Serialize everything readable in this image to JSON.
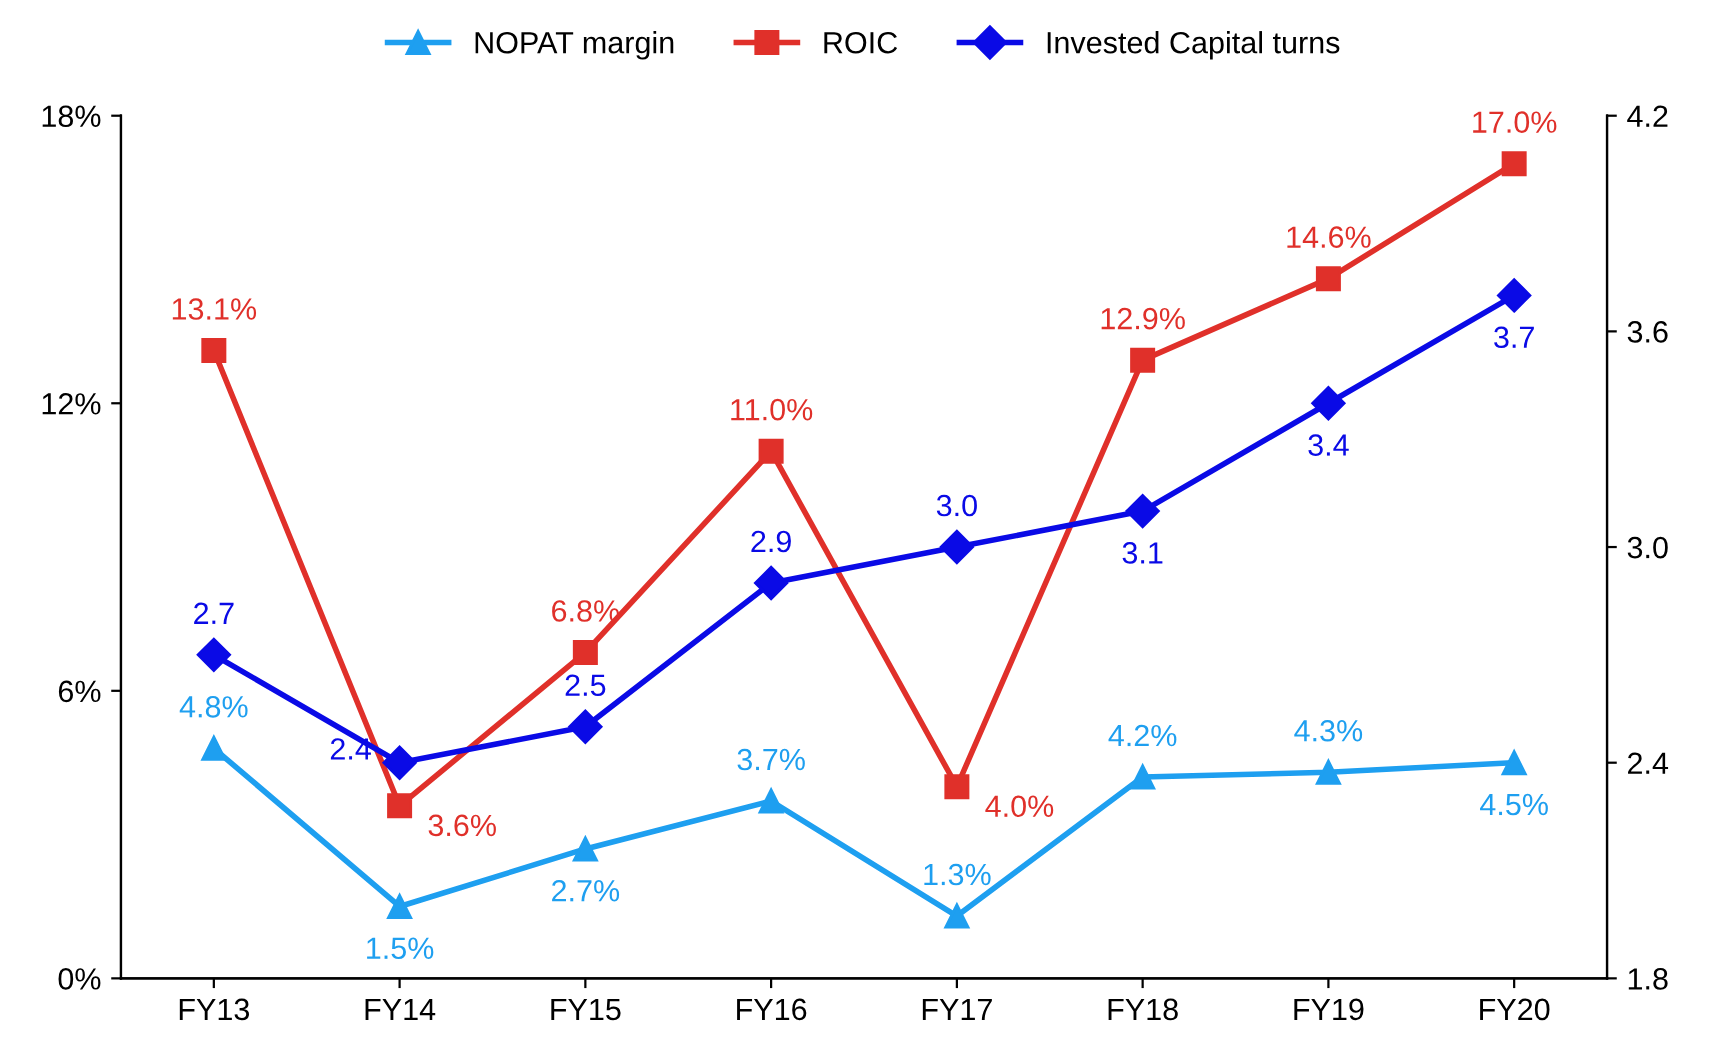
{
  "chart_data": {
    "type": "line",
    "categories": [
      "FY13",
      "FY14",
      "FY15",
      "FY16",
      "FY17",
      "FY18",
      "FY19",
      "FY20"
    ],
    "series": [
      {
        "name": "NOPAT margin",
        "color": "#1e9ff0",
        "marker": "triangle",
        "values": [
          4.8,
          1.5,
          2.7,
          3.7,
          1.3,
          4.2,
          4.3,
          4.5
        ],
        "value_labels": [
          "4.8%",
          "1.5%",
          "2.7%",
          "3.7%",
          "1.3%",
          "4.2%",
          "4.3%",
          "4.5%"
        ]
      },
      {
        "name": "ROIC",
        "color": "#e0302a",
        "marker": "square",
        "values": [
          13.1,
          3.6,
          6.8,
          11.0,
          4.0,
          12.9,
          14.6,
          17.0
        ],
        "value_labels": [
          "13.1%",
          "3.6%",
          "6.8%",
          "11.0%",
          "4.0%",
          "12.9%",
          "14.6%",
          "17.0%"
        ]
      },
      {
        "name": "Invested Capital turns",
        "color": "#0a0ae6",
        "marker": "diamond",
        "axis": "y2",
        "values": [
          2.7,
          2.4,
          2.5,
          2.9,
          3.0,
          3.1,
          3.4,
          3.7
        ],
        "value_labels": [
          "2.7",
          "2.4",
          "2.5",
          "2.9",
          "3.0",
          "3.1",
          "3.4",
          "3.7"
        ]
      }
    ],
    "ylim": [
      0,
      18
    ],
    "yticks": [
      {
        "value": 0,
        "label": "0%"
      },
      {
        "value": 6,
        "label": "6%"
      },
      {
        "value": 12,
        "label": "12%"
      },
      {
        "value": 18,
        "label": "18%"
      }
    ],
    "y2lim": [
      1.8,
      4.2
    ],
    "y2ticks": [
      1.8,
      2.4,
      {
        "value": 3.0,
        "label": "3.0"
      },
      3.6,
      4.2
    ],
    "grid": false,
    "legend": "top",
    "line_style": "solid"
  }
}
